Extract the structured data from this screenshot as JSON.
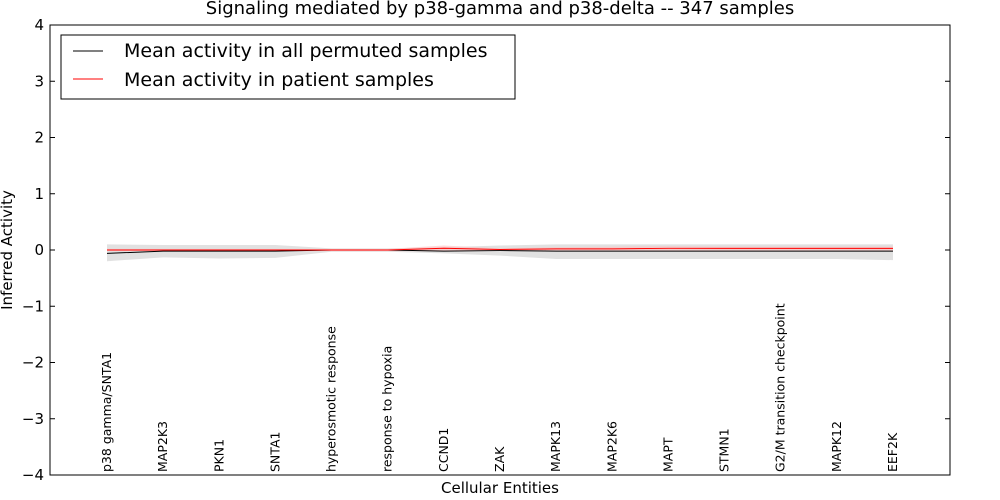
{
  "chart_data": {
    "type": "line",
    "title": "Signaling mediated by p38-gamma and p38-delta -- 347 samples",
    "xlabel": "Cellular Entities",
    "ylabel": "Inferred Activity",
    "ylim": [
      -4,
      4
    ],
    "yticks": [
      "−4",
      "−3",
      "−2",
      "−1",
      "0",
      "1",
      "2",
      "3",
      "4"
    ],
    "categories": [
      "p38 gamma/SNTA1",
      "MAP2K3",
      "PKN1",
      "SNTA1",
      "hyperosmotic response",
      "response to hypoxia",
      "CCND1",
      "ZAK",
      "MAPK13",
      "MAP2K6",
      "MAPT",
      "STMN1",
      "G2/M transition checkpoint",
      "MAPK12",
      "EEF2K"
    ],
    "legend_position": "top-left",
    "grid": false,
    "series": [
      {
        "name": "Mean activity in all permuted samples",
        "color": "#000000",
        "band_color": "#c8c8c8",
        "values": [
          -0.06,
          -0.02,
          -0.02,
          -0.02,
          0.0,
          0.0,
          -0.02,
          -0.01,
          -0.02,
          -0.02,
          -0.02,
          -0.02,
          -0.02,
          -0.02,
          -0.02
        ],
        "upper": [
          0.1,
          0.09,
          0.09,
          0.09,
          0.03,
          0.03,
          0.05,
          0.08,
          0.1,
          0.1,
          0.1,
          0.1,
          0.1,
          0.1,
          0.1
        ],
        "lower": [
          -0.2,
          -0.13,
          -0.15,
          -0.14,
          -0.03,
          -0.03,
          -0.06,
          -0.1,
          -0.16,
          -0.16,
          -0.16,
          -0.16,
          -0.16,
          -0.16,
          -0.18
        ]
      },
      {
        "name": "Mean activity in patient samples",
        "color": "#ff0000",
        "band_color": "#ffc0c0",
        "values": [
          0.0,
          0.0,
          0.0,
          0.0,
          0.0,
          0.0,
          0.03,
          0.01,
          0.02,
          0.02,
          0.03,
          0.03,
          0.03,
          0.03,
          0.03
        ],
        "upper": [
          0.02,
          0.02,
          0.02,
          0.02,
          0.02,
          0.02,
          0.08,
          0.03,
          0.05,
          0.06,
          0.07,
          0.06,
          0.06,
          0.06,
          0.06
        ],
        "lower": [
          -0.02,
          -0.02,
          -0.02,
          -0.02,
          -0.02,
          -0.02,
          -0.02,
          -0.01,
          -0.01,
          -0.01,
          -0.01,
          -0.01,
          -0.01,
          -0.01,
          -0.01
        ]
      }
    ]
  }
}
